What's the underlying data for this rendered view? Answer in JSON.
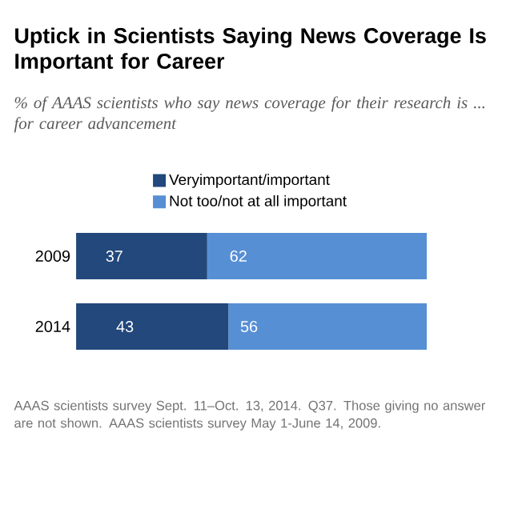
{
  "chart_data": {
    "type": "bar",
    "orientation": "horizontal",
    "stacked": true,
    "data_labels": true,
    "legend": "top",
    "title": "Uptick in Scientists Saying News Coverage Is Important for Career",
    "subtitle": "% of AAAS scientists who say news coverage for their research is ... for career advancement",
    "categories": [
      "2009",
      "2014"
    ],
    "series": [
      {
        "name": "Veryimportant/important",
        "color": "#22487c",
        "values": [
          37,
          43
        ]
      },
      {
        "name": "Not too/not at all important",
        "color": "#578fd5",
        "values": [
          62,
          56
        ]
      }
    ],
    "annotations": [
      "AAAS scientists survey Sept. 11–Oct. 13, 2014. Q37. Those giving no answer are not shown. AAAS scientists survey May 1-June 14, 2009."
    ]
  }
}
